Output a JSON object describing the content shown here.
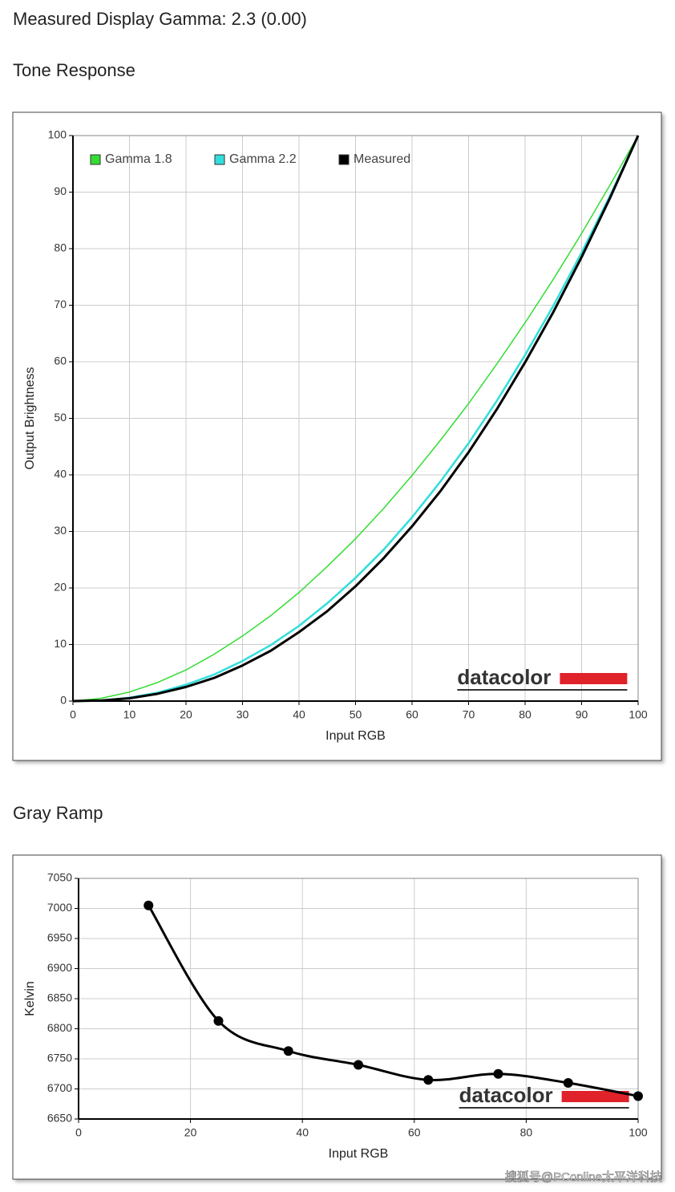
{
  "title": "Measured Display Gamma: 2.3 (0.00)",
  "watermark": "搜狐号@PConline太平洋科技",
  "chart_data": [
    {
      "type": "line",
      "title": "Tone Response",
      "x_label": "Input RGB",
      "y_label": "Output Brightness",
      "x": [
        0,
        5,
        10,
        15,
        20,
        25,
        30,
        35,
        40,
        45,
        50,
        55,
        60,
        65,
        70,
        75,
        80,
        85,
        90,
        95,
        100
      ],
      "series": [
        {
          "name": "Gamma 1.8",
          "color": "#33dd33",
          "width": 1.5,
          "values": [
            0,
            0.5,
            1.6,
            3.3,
            5.5,
            8.3,
            11.5,
            15.1,
            19.2,
            23.8,
            28.7,
            34.1,
            39.9,
            46.1,
            52.6,
            59.6,
            66.9,
            74.6,
            82.7,
            91.2,
            100
          ]
        },
        {
          "name": "Gamma 2.2",
          "color": "#33dddd",
          "width": 2.5,
          "values": [
            0,
            0.1,
            0.6,
            1.5,
            2.9,
            4.7,
            7.1,
            9.9,
            13.3,
            17.3,
            21.8,
            26.8,
            32.5,
            38.8,
            45.6,
            53.1,
            61.2,
            69.9,
            79.3,
            89.3,
            100
          ]
        },
        {
          "name": "Measured",
          "color": "#000000",
          "width": 3,
          "values": [
            0,
            0.1,
            0.5,
            1.3,
            2.5,
            4.1,
            6.3,
            8.9,
            12.2,
            15.9,
            20.3,
            25.3,
            30.9,
            37.1,
            44.0,
            51.6,
            59.9,
            68.8,
            78.5,
            88.9,
            100
          ]
        }
      ],
      "xlim": [
        0,
        100
      ],
      "ylim": [
        0,
        100
      ],
      "xticks": [
        0,
        10,
        20,
        30,
        40,
        50,
        60,
        70,
        80,
        90,
        100
      ],
      "yticks": [
        0,
        10,
        20,
        30,
        40,
        50,
        60,
        70,
        80,
        90,
        100
      ],
      "grid": true,
      "legend": "top-left",
      "logo": "datacolor"
    },
    {
      "type": "line",
      "title": "Gray Ramp",
      "x_label": "Input RGB",
      "y_label": "Kelvin",
      "x": [
        12.5,
        25,
        37.5,
        50,
        62.5,
        75,
        87.5,
        100
      ],
      "series": [
        {
          "color": "#000000",
          "width": 3,
          "markers": true,
          "values": [
            7005,
            6813,
            6763,
            6740,
            6715,
            6725,
            6710,
            6688
          ]
        }
      ],
      "xlim": [
        0,
        100
      ],
      "ylim": [
        6650,
        7050
      ],
      "xticks": [
        0,
        20,
        40,
        60,
        80,
        100
      ],
      "yticks": [
        6650,
        6700,
        6750,
        6800,
        6850,
        6900,
        6950,
        7000,
        7050
      ],
      "grid": true,
      "logo": "datacolor"
    }
  ]
}
